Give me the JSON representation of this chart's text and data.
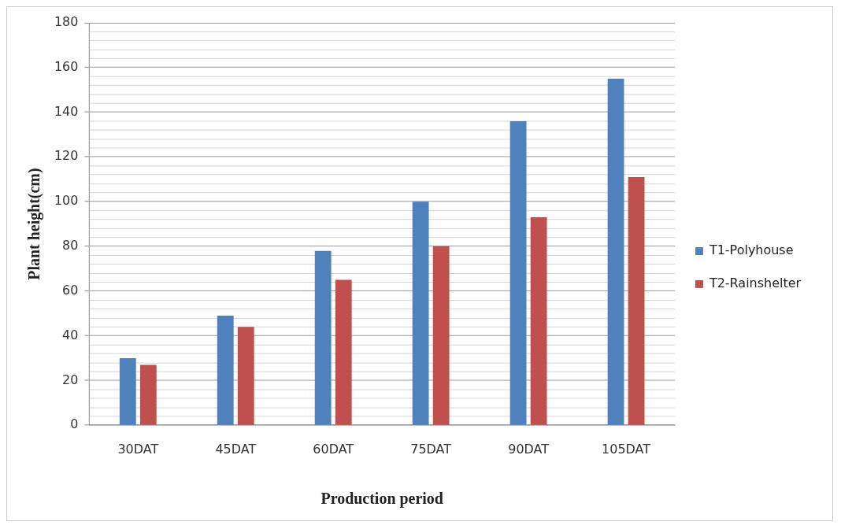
{
  "chart_data": {
    "type": "bar",
    "xlabel": "Production period",
    "ylabel": "Plant height(cm)",
    "categories": [
      "30DAT",
      "45DAT",
      "60DAT",
      "75DAT",
      "90DAT",
      "105DAT"
    ],
    "series": [
      {
        "name": "T1-Polyhouse",
        "color": "#4f81bd",
        "values": [
          30,
          49,
          78,
          100,
          136,
          155
        ]
      },
      {
        "name": "T2-Rainshelter",
        "color": "#c0504d",
        "values": [
          27,
          44,
          65,
          80,
          93,
          111
        ]
      }
    ],
    "ylim": [
      0,
      180
    ],
    "yticks": [
      0,
      {
        "value": 4,
        "label": null
      },
      {
        "value": 8,
        "label": null
      },
      {
        "value": 12,
        "label": null
      },
      {
        "value": 16,
        "label": null
      },
      20,
      {
        "value": 24,
        "label": null
      },
      {
        "value": 28,
        "label": null
      },
      {
        "value": 32,
        "label": null
      },
      {
        "value": 36,
        "label": null
      },
      40,
      {
        "value": 44,
        "label": null
      },
      {
        "value": 48,
        "label": null
      },
      {
        "value": 52,
        "label": null
      },
      {
        "value": 56,
        "label": null
      },
      60,
      {
        "value": 64,
        "label": null
      },
      {
        "value": 68,
        "label": null
      },
      {
        "value": 72,
        "label": null
      },
      {
        "value": 76,
        "label": null
      },
      80,
      {
        "value": 84,
        "label": null
      },
      {
        "value": 88,
        "label": null
      },
      {
        "value": 92,
        "label": null
      },
      {
        "value": 96,
        "label": null
      },
      100,
      {
        "value": 104,
        "label": null
      },
      {
        "value": 108,
        "label": null
      },
      {
        "value": 112,
        "label": null
      },
      {
        "value": 116,
        "label": null
      },
      120,
      {
        "value": 124,
        "label": null
      },
      {
        "value": 128,
        "label": null
      },
      {
        "value": 132,
        "label": null
      },
      {
        "value": 136,
        "label": null
      },
      140,
      {
        "value": 144,
        "label": null
      },
      {
        "value": 148,
        "label": null
      },
      {
        "value": 152,
        "label": null
      },
      {
        "value": 156,
        "label": null
      },
      160,
      {
        "value": 164,
        "label": null
      },
      {
        "value": 168,
        "label": null
      },
      {
        "value": 172,
        "label": null
      },
      {
        "value": 176,
        "label": null
      },
      180
    ],
    "grid": "y",
    "legend": "right"
  }
}
